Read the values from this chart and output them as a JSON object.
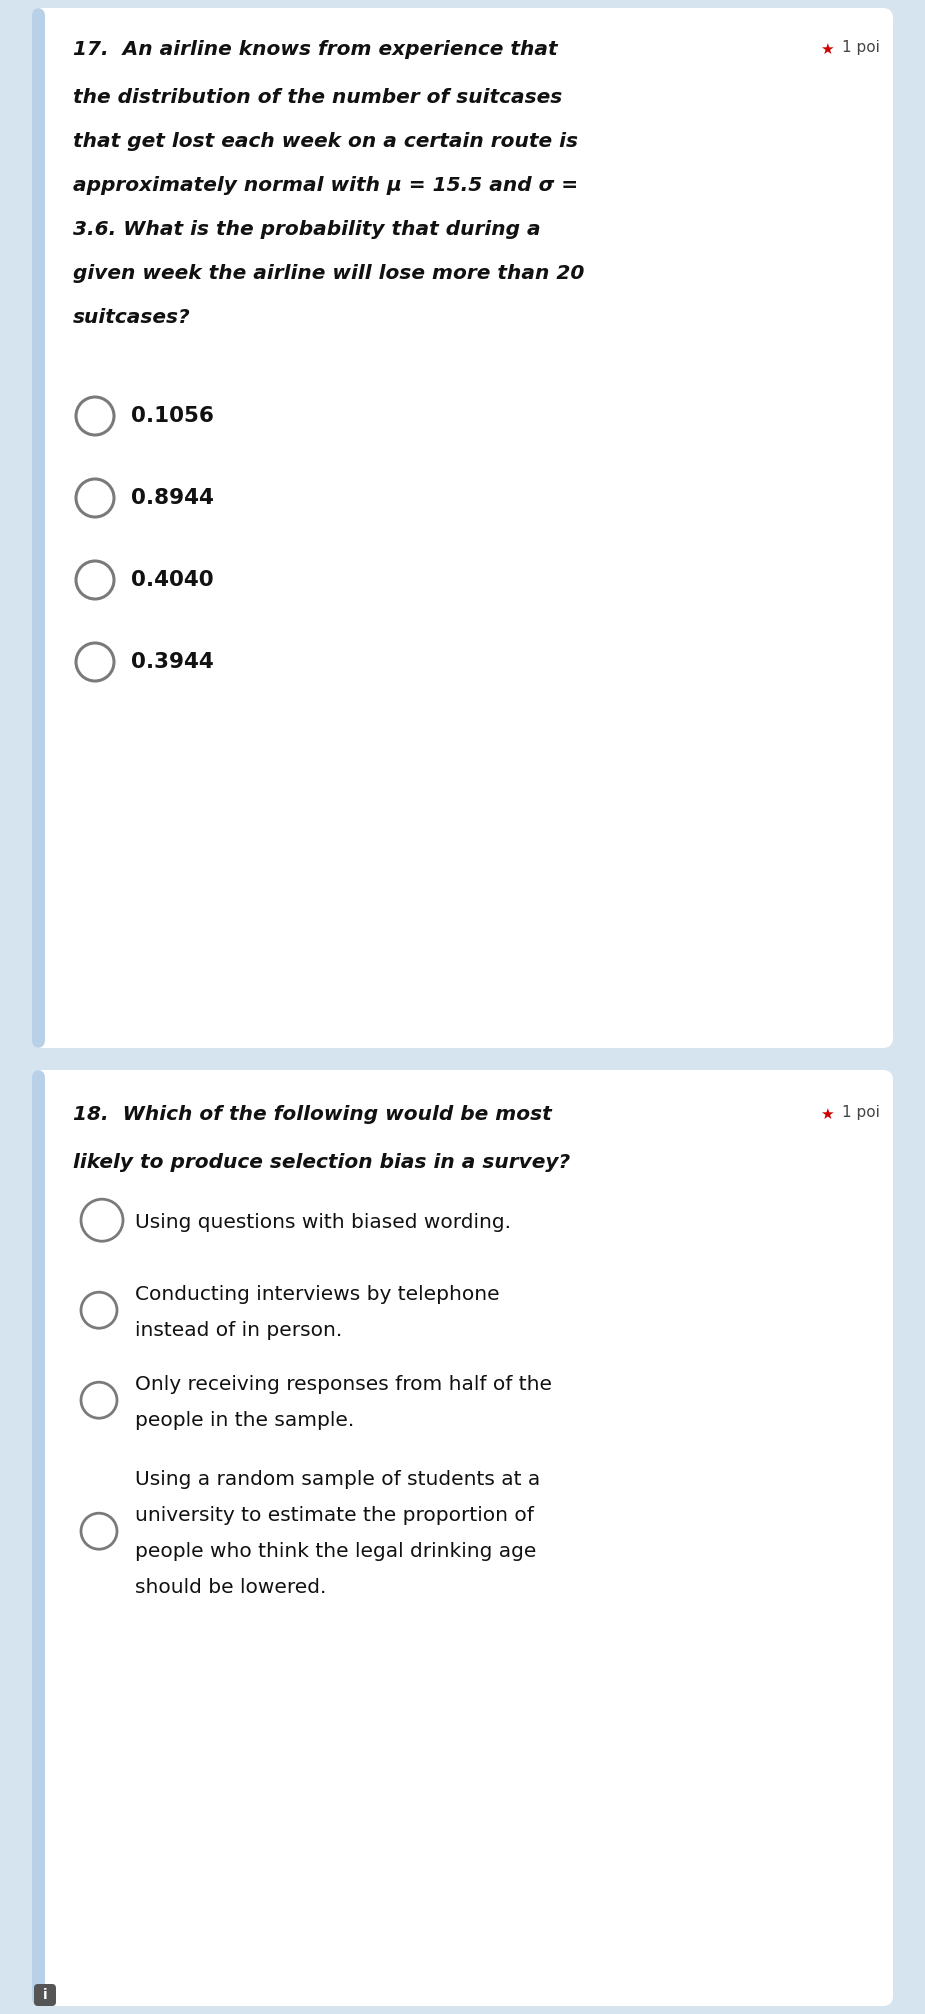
{
  "bg_color": "#d6e4f0",
  "card_color": "#ffffff",
  "left_strip_color": "#b8d0e8",
  "q1_number": "17.",
  "q1_header": "An airline knows from experience that",
  "q1_body_lines": [
    "the distribution of the number of suitcases",
    "that get lost each week on a certain route is",
    "approximately normal with μ = 15.5 and σ =",
    "3.6. What is the probability that during a",
    "given week the airline will lose more than 20",
    "suitcases?"
  ],
  "q1_choices": [
    "0.1056",
    "0.8944",
    "0.4040",
    "0.3944"
  ],
  "q2_number": "18.",
  "q2_header": "Which of the following would be most",
  "q2_subheader": "likely to produce selection bias in a survey?",
  "q2_choices": [
    [
      "Using questions with biased wording."
    ],
    [
      "Conducting interviews by telephone",
      "instead of in person."
    ],
    [
      "Only receiving responses from half of the",
      "people in the sample."
    ],
    [
      "Using a random sample of students at a",
      "university to estimate the proportion of",
      "people who think the legal drinking age",
      "should be lowered."
    ]
  ],
  "star_color": "#cc0000",
  "points_text": "1 poi",
  "circle_color": "#7a7a7a",
  "q1_font_size": 14.5,
  "q2_font_size": 14.5,
  "choice_q1_font_size": 14.5,
  "choice_q2_font_size": 14.5
}
